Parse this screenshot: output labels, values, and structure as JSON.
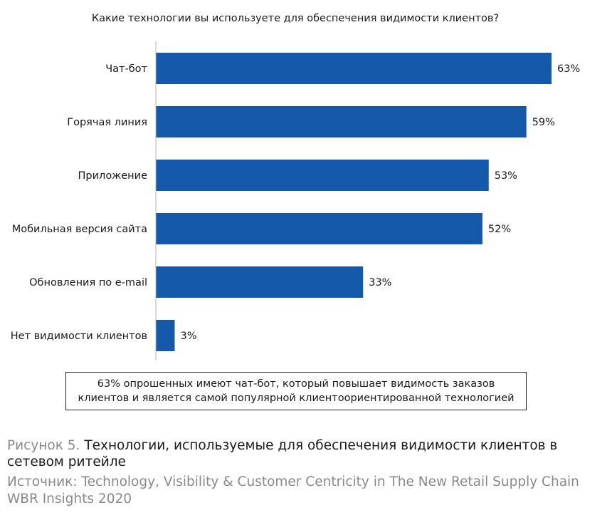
{
  "chart_data": {
    "type": "bar",
    "orientation": "horizontal",
    "title": "Какие технологии вы используете для обеспечения видимости клиентов?",
    "categories": [
      "Чат-бот",
      "Горячая линия",
      "Приложение",
      "Мобильная версия сайта",
      "Обновления по e-mail",
      "Нет видимости клиентов"
    ],
    "values": [
      63,
      59,
      53,
      52,
      33,
      3
    ],
    "value_labels": [
      "63%",
      "59%",
      "53%",
      "52%",
      "33%",
      "3%"
    ],
    "xlim": [
      0,
      63
    ],
    "grid": false,
    "bar_color": "#1459aa"
  },
  "note": "63% опрошенных имеют чат-бот, который повышает видимость заказов клиентов и является самой популярной клиентоориентированной технологией",
  "caption": {
    "figure_number": "Рисунок 5.",
    "figure_title": "Технологии, используемые для обеспечения видимости клиентов в сетевом ритейле"
  },
  "source": "Источник: Technology, Visibility & Customer Centricity in The New Retail Supply Chain WBR Insights 2020"
}
